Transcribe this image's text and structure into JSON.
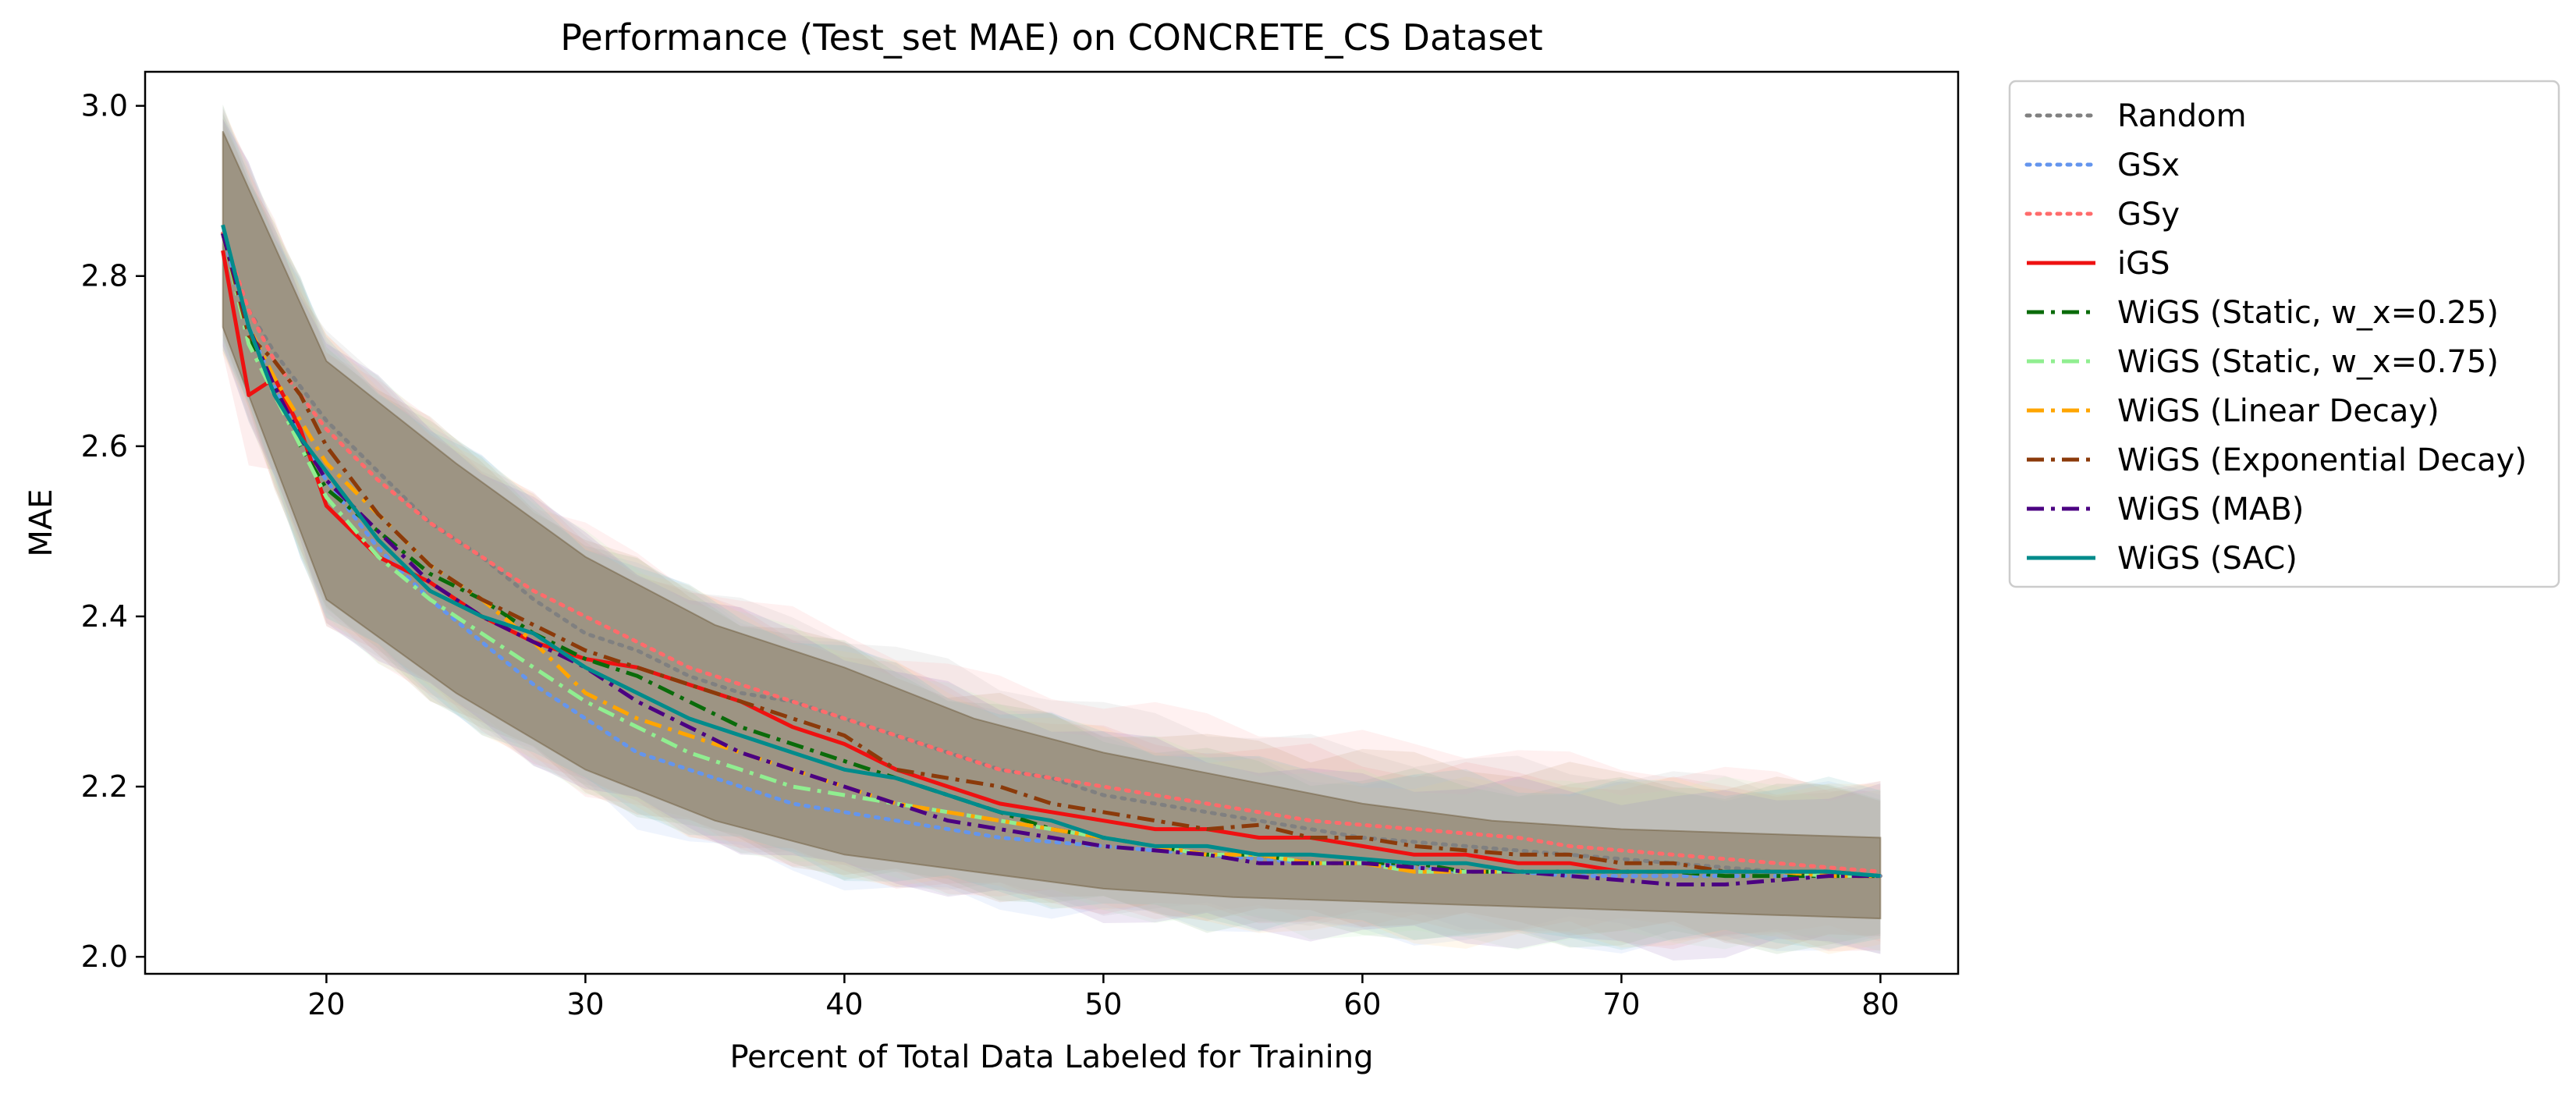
{
  "chart_data": {
    "type": "line",
    "title": "Performance (Test_set MAE) on CONCRETE_CS Dataset",
    "xlabel": "Percent of Total Data Labeled for Training",
    "ylabel": "MAE",
    "xlim": [
      13,
      83
    ],
    "ylim": [
      1.98,
      3.04
    ],
    "xticks": [
      20,
      30,
      40,
      50,
      60,
      70,
      80
    ],
    "yticks": [
      2.0,
      2.2,
      2.4,
      2.6,
      2.8,
      3.0
    ],
    "xtick_labels": [
      "20",
      "30",
      "40",
      "50",
      "60",
      "70",
      "80"
    ],
    "ytick_labels": [
      "2.0",
      "2.2",
      "2.4",
      "2.6",
      "2.8",
      "3.0"
    ],
    "grid": false,
    "legend_position": "outside-right",
    "shaded_band": {
      "x": [
        16,
        20,
        25,
        30,
        35,
        40,
        45,
        50,
        55,
        60,
        65,
        70,
        75,
        80
      ],
      "upper": [
        2.99,
        2.72,
        2.6,
        2.49,
        2.41,
        2.36,
        2.3,
        2.26,
        2.23,
        2.2,
        2.18,
        2.17,
        2.165,
        2.16
      ],
      "lower": [
        2.72,
        2.4,
        2.29,
        2.2,
        2.14,
        2.1,
        2.08,
        2.06,
        2.05,
        2.045,
        2.04,
        2.035,
        2.03,
        2.025
      ]
    },
    "x": [
      16,
      17,
      18,
      19,
      20,
      22,
      24,
      26,
      28,
      30,
      32,
      34,
      36,
      38,
      40,
      42,
      44,
      46,
      48,
      50,
      52,
      54,
      56,
      58,
      60,
      62,
      64,
      66,
      68,
      70,
      72,
      74,
      76,
      78,
      80
    ],
    "series": [
      {
        "name": "Random",
        "color": "#808080",
        "dash": "dotted",
        "band_color": "#bfbfbf",
        "values": [
          2.85,
          2.76,
          2.71,
          2.67,
          2.63,
          2.57,
          2.51,
          2.47,
          2.42,
          2.38,
          2.36,
          2.33,
          2.31,
          2.3,
          2.28,
          2.26,
          2.24,
          2.22,
          2.21,
          2.19,
          2.18,
          2.17,
          2.16,
          2.15,
          2.14,
          2.135,
          2.13,
          2.125,
          2.12,
          2.115,
          2.11,
          2.105,
          2.1,
          2.098,
          2.095
        ]
      },
      {
        "name": "GSx",
        "color": "#6495ed",
        "dash": "dotted",
        "band_color": "#a8c4f5",
        "values": [
          2.85,
          2.74,
          2.67,
          2.61,
          2.56,
          2.48,
          2.42,
          2.37,
          2.32,
          2.28,
          2.24,
          2.22,
          2.2,
          2.18,
          2.17,
          2.16,
          2.15,
          2.14,
          2.135,
          2.13,
          2.125,
          2.12,
          2.115,
          2.11,
          2.11,
          2.105,
          2.1,
          2.1,
          2.095,
          2.095,
          2.095,
          2.095,
          2.095,
          2.095,
          2.095
        ]
      },
      {
        "name": "GSy",
        "color": "#ff6b6b",
        "dash": "dotted",
        "band_color": "#ffb3b3",
        "values": [
          2.85,
          2.76,
          2.7,
          2.66,
          2.62,
          2.56,
          2.51,
          2.47,
          2.43,
          2.4,
          2.37,
          2.34,
          2.32,
          2.3,
          2.28,
          2.26,
          2.24,
          2.22,
          2.21,
          2.2,
          2.19,
          2.18,
          2.17,
          2.16,
          2.155,
          2.15,
          2.145,
          2.14,
          2.13,
          2.125,
          2.12,
          2.115,
          2.11,
          2.105,
          2.1
        ]
      },
      {
        "name": "iGS",
        "color": "#ee1111",
        "dash": "solid",
        "band_color": "#f5a0a0",
        "values": [
          2.83,
          2.66,
          2.68,
          2.62,
          2.53,
          2.47,
          2.44,
          2.4,
          2.37,
          2.35,
          2.34,
          2.32,
          2.3,
          2.27,
          2.25,
          2.22,
          2.2,
          2.18,
          2.17,
          2.16,
          2.15,
          2.15,
          2.14,
          2.14,
          2.13,
          2.12,
          2.12,
          2.11,
          2.11,
          2.1,
          2.1,
          2.1,
          2.1,
          2.095,
          2.095
        ]
      },
      {
        "name": "WiGS (Static, w_x=0.25)",
        "color": "#0a6b0a",
        "dash": "dashdot",
        "band_color": "#8fbf8f",
        "values": [
          2.85,
          2.73,
          2.67,
          2.6,
          2.55,
          2.5,
          2.45,
          2.42,
          2.38,
          2.35,
          2.33,
          2.3,
          2.27,
          2.25,
          2.23,
          2.21,
          2.19,
          2.17,
          2.15,
          2.14,
          2.13,
          2.12,
          2.12,
          2.11,
          2.11,
          2.11,
          2.1,
          2.1,
          2.1,
          2.1,
          2.1,
          2.095,
          2.095,
          2.095,
          2.095
        ]
      },
      {
        "name": "WiGS (Static, w_x=0.75)",
        "color": "#90ee90",
        "dash": "dashdot",
        "band_color": "#c4f2c4",
        "values": [
          2.85,
          2.72,
          2.66,
          2.6,
          2.54,
          2.47,
          2.42,
          2.38,
          2.34,
          2.3,
          2.27,
          2.24,
          2.22,
          2.2,
          2.19,
          2.18,
          2.17,
          2.16,
          2.15,
          2.14,
          2.13,
          2.12,
          2.12,
          2.11,
          2.11,
          2.1,
          2.1,
          2.1,
          2.1,
          2.1,
          2.1,
          2.1,
          2.1,
          2.095,
          2.095
        ]
      },
      {
        "name": "WiGS (Linear Decay)",
        "color": "#ffa500",
        "dash": "dashdot",
        "band_color": "#ffd89a",
        "values": [
          2.85,
          2.74,
          2.68,
          2.63,
          2.58,
          2.52,
          2.46,
          2.42,
          2.37,
          2.31,
          2.28,
          2.26,
          2.24,
          2.22,
          2.2,
          2.18,
          2.17,
          2.16,
          2.15,
          2.14,
          2.13,
          2.12,
          2.12,
          2.11,
          2.11,
          2.1,
          2.1,
          2.1,
          2.1,
          2.1,
          2.1,
          2.1,
          2.1,
          2.095,
          2.095
        ]
      },
      {
        "name": "WiGS (Exponential Decay)",
        "color": "#8b3a0a",
        "dash": "dashdot",
        "band_color": "#c9a080",
        "values": [
          2.85,
          2.73,
          2.7,
          2.66,
          2.6,
          2.52,
          2.46,
          2.42,
          2.39,
          2.36,
          2.34,
          2.32,
          2.3,
          2.28,
          2.26,
          2.22,
          2.21,
          2.2,
          2.18,
          2.17,
          2.16,
          2.15,
          2.155,
          2.14,
          2.14,
          2.13,
          2.125,
          2.12,
          2.12,
          2.11,
          2.11,
          2.1,
          2.1,
          2.1,
          2.095
        ]
      },
      {
        "name": "WiGS (MAB)",
        "color": "#4b0082",
        "dash": "dashdot",
        "band_color": "#9f80c0",
        "values": [
          2.85,
          2.74,
          2.67,
          2.61,
          2.56,
          2.5,
          2.44,
          2.4,
          2.37,
          2.34,
          2.3,
          2.27,
          2.24,
          2.22,
          2.2,
          2.18,
          2.16,
          2.15,
          2.14,
          2.13,
          2.125,
          2.12,
          2.11,
          2.11,
          2.11,
          2.105,
          2.1,
          2.1,
          2.095,
          2.09,
          2.085,
          2.085,
          2.09,
          2.095,
          2.095
        ]
      },
      {
        "name": "WiGS (SAC)",
        "color": "#008b8b",
        "dash": "solid",
        "band_color": "#80c4c4",
        "values": [
          2.86,
          2.74,
          2.66,
          2.61,
          2.57,
          2.49,
          2.43,
          2.4,
          2.38,
          2.34,
          2.31,
          2.28,
          2.26,
          2.24,
          2.22,
          2.21,
          2.19,
          2.17,
          2.16,
          2.14,
          2.13,
          2.13,
          2.12,
          2.12,
          2.115,
          2.11,
          2.11,
          2.1,
          2.1,
          2.1,
          2.1,
          2.1,
          2.1,
          2.1,
          2.095
        ]
      }
    ]
  }
}
